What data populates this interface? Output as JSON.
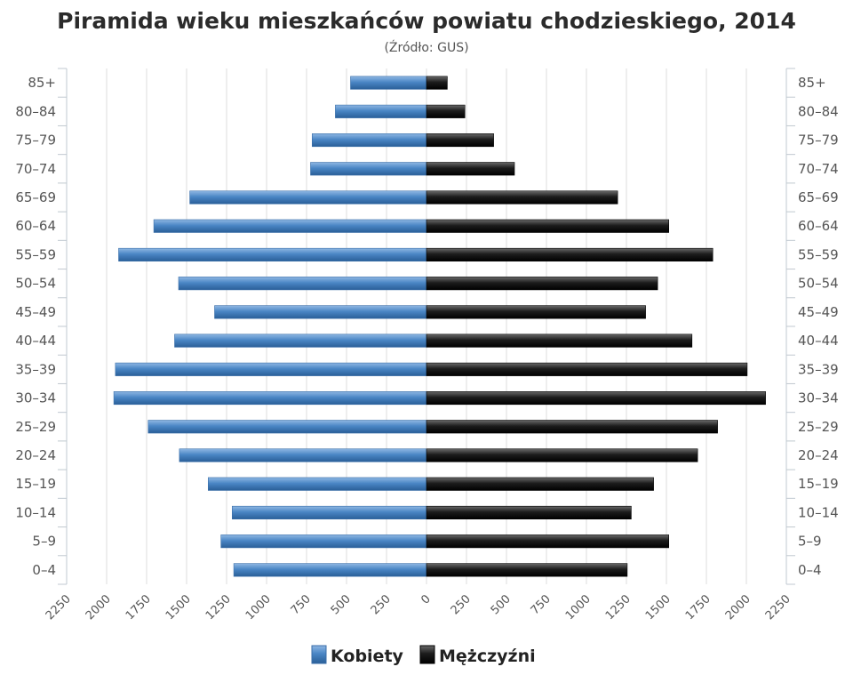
{
  "chart_data": {
    "type": "bar",
    "orientation": "horizontal-diverging",
    "title": "Piramida wieku mieszkańców powiatu chodzieskiego, 2014",
    "subtitle": "(Źródło: GUS)",
    "categories": [
      "85+",
      "80–84",
      "75–79",
      "70–74",
      "65–69",
      "60–64",
      "55–59",
      "50–54",
      "45–49",
      "40–44",
      "35–39",
      "30–34",
      "25–29",
      "20–24",
      "15–19",
      "10–14",
      "5–9",
      "0–4"
    ],
    "series": [
      {
        "name": "Kobiety",
        "color": "#4a86c5",
        "values": [
          475,
          570,
          715,
          725,
          1480,
          1705,
          1925,
          1550,
          1325,
          1575,
          1945,
          1955,
          1740,
          1545,
          1365,
          1215,
          1285,
          1205
        ]
      },
      {
        "name": "Mężczyźni",
        "color": "#1a1a1a",
        "values": [
          130,
          240,
          420,
          550,
          1195,
          1515,
          1790,
          1445,
          1370,
          1660,
          2005,
          2120,
          1820,
          1695,
          1420,
          1280,
          1515,
          1255
        ]
      }
    ],
    "x_ticks": [
      "2250",
      "2000",
      "1750",
      "1500",
      "1250",
      "1000",
      "750",
      "500",
      "250",
      "0",
      "250",
      "500",
      "750",
      "1000",
      "1250",
      "1500",
      "1750",
      "2000",
      "2250"
    ],
    "xlim": [
      -2250,
      2250
    ],
    "grid": true,
    "legend_position": "bottom-center"
  }
}
